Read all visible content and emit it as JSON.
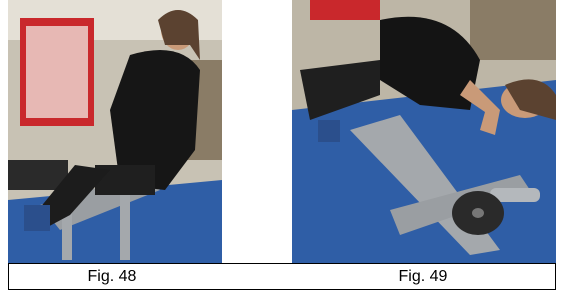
{
  "figures": [
    {
      "caption": "Fig. 48"
    },
    {
      "caption": "Fig. 49"
    }
  ]
}
